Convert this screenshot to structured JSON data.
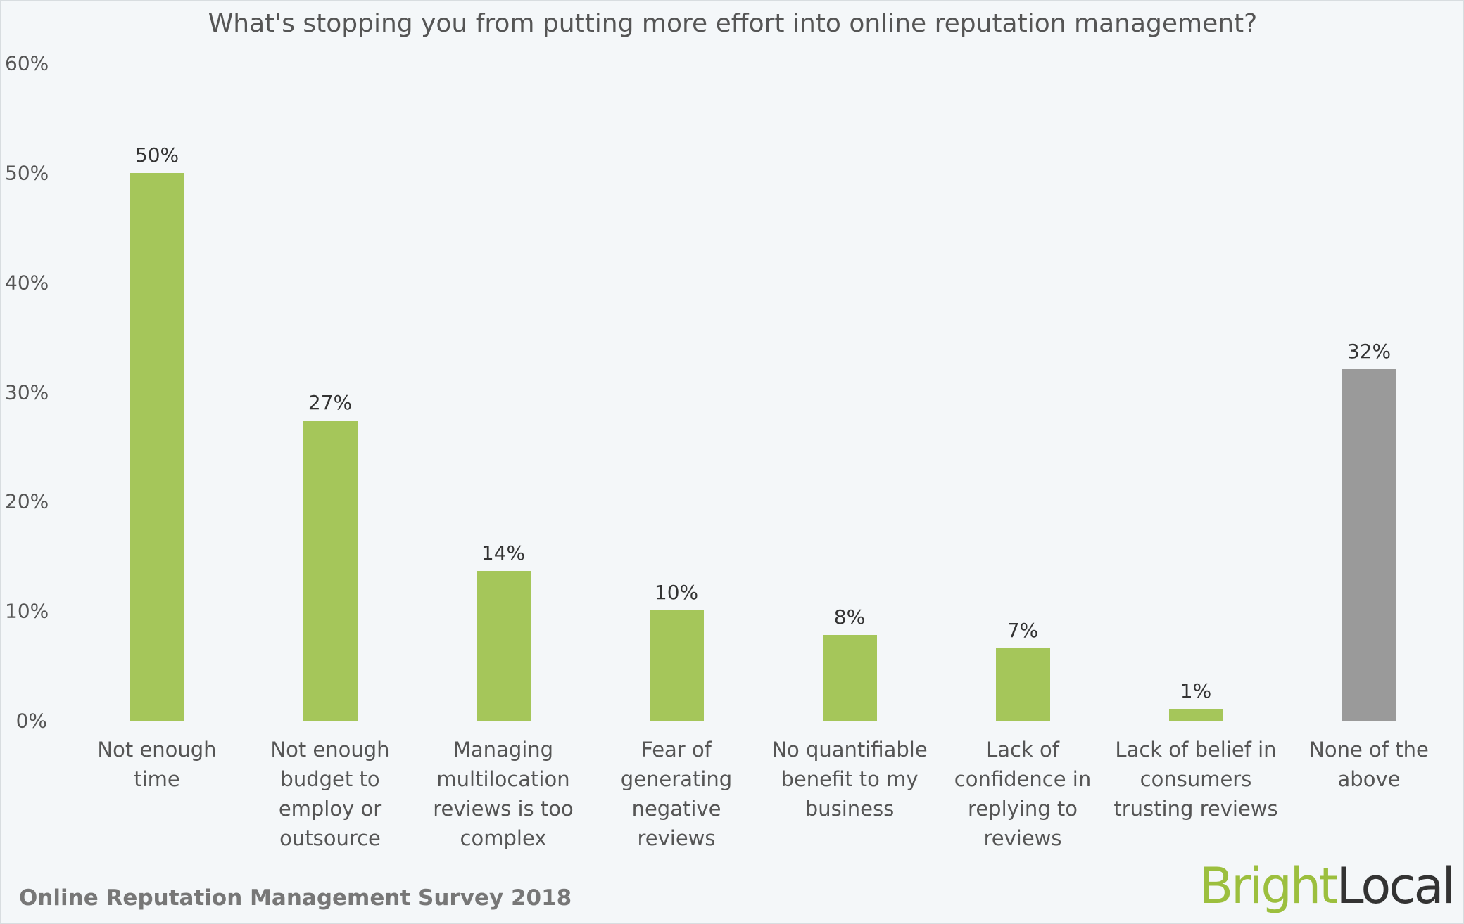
{
  "chart_data": {
    "type": "bar",
    "title": "What's stopping you from putting more effort into online reputation management?",
    "categories": [
      "Not enough time",
      "Not enough budget to employ or outsource",
      "Managing multilocation reviews is too complex",
      "Fear of generating negative reviews",
      "No quantifiable benefit to my business",
      "Lack of confidence in replying to reviews",
      "Lack of belief in consumers trusting reviews",
      "None of the above"
    ],
    "values": [
      50,
      27.4,
      13.7,
      10.1,
      7.8,
      6.6,
      1.1,
      32.1
    ],
    "value_labels": [
      "50%",
      "27%",
      "14%",
      "10%",
      "8%",
      "7%",
      "1%",
      "32%"
    ],
    "colors": [
      "#a5c65a",
      "#a5c65a",
      "#a5c65a",
      "#a5c65a",
      "#a5c65a",
      "#a5c65a",
      "#a5c65a",
      "#9a9a9a"
    ],
    "ylim": [
      0,
      60
    ],
    "yticks": [
      {
        "value": 0,
        "label": "0%"
      },
      {
        "value": 10,
        "label": "10%"
      },
      {
        "value": 20,
        "label": "20%"
      },
      {
        "value": 30,
        "label": "30%"
      },
      {
        "value": 40,
        "label": "40%"
      },
      {
        "value": 50,
        "label": "50%"
      },
      {
        "value": 60,
        "label": "60%"
      }
    ],
    "grid": false
  },
  "footer": "Online Reputation Management Survey 2018",
  "logo": {
    "first": "Bright",
    "second": "Local"
  }
}
